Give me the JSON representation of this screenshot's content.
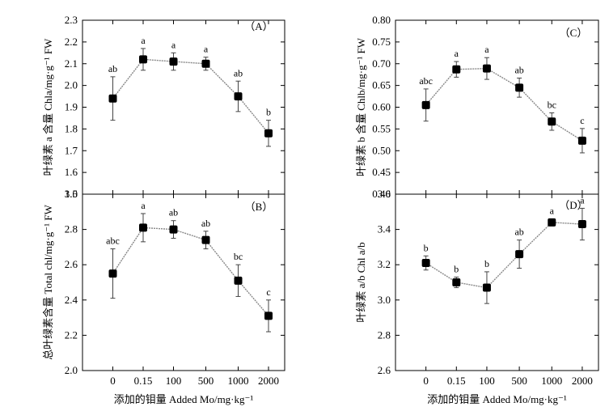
{
  "chart_data": [
    {
      "id": "A",
      "type": "line",
      "panel_label": "（A）",
      "ylabel": "叶绿素 a 含量 Chla/mg·g⁻¹ FW",
      "xlabel": "",
      "categories": [
        "0",
        "0.15",
        "100",
        "500",
        "1000",
        "2000"
      ],
      "ylim": [
        1.5,
        2.3
      ],
      "yticks": [
        "1.5",
        "1.6",
        "1.7",
        "1.8",
        "1.9",
        "2.0",
        "2.1",
        "2.2",
        "2.3"
      ],
      "values": [
        1.94,
        2.12,
        2.11,
        2.1,
        1.95,
        1.78
      ],
      "errors": [
        0.1,
        0.05,
        0.04,
        0.03,
        0.07,
        0.06
      ],
      "sig": [
        "ab",
        "a",
        "a",
        "a",
        "ab",
        "b"
      ]
    },
    {
      "id": "B",
      "type": "line",
      "panel_label": "（B）",
      "ylabel": "总叶绿素含量 Total chl/mg·g⁻¹ FW",
      "xlabel": "添加的钼量 Added Mo/mg·kg⁻¹",
      "categories": [
        "0",
        "0.15",
        "100",
        "500",
        "1000",
        "2000"
      ],
      "ylim": [
        2.0,
        3.0
      ],
      "yticks": [
        "2.0",
        "2.2",
        "2.4",
        "2.6",
        "2.8",
        "3.0"
      ],
      "values": [
        2.55,
        2.81,
        2.8,
        2.74,
        2.51,
        2.31
      ],
      "errors": [
        0.14,
        0.08,
        0.05,
        0.05,
        0.09,
        0.09
      ],
      "sig": [
        "abc",
        "a",
        "ab",
        "ab",
        "bc",
        "c"
      ]
    },
    {
      "id": "C",
      "type": "line",
      "panel_label": "（C）",
      "ylabel": "叶绿素 b 含量 Chlb/mg·g⁻¹ FW",
      "xlabel": "",
      "categories": [
        "0",
        "0.15",
        "100",
        "500",
        "1000",
        "2000"
      ],
      "ylim": [
        0.4,
        0.8
      ],
      "yticks": [
        "0.40",
        "0.45",
        "0.50",
        "0.55",
        "0.60",
        "0.65",
        "0.70",
        "0.75",
        "0.80"
      ],
      "values": [
        0.605,
        0.687,
        0.689,
        0.645,
        0.567,
        0.523
      ],
      "errors": [
        0.037,
        0.018,
        0.025,
        0.022,
        0.02,
        0.028
      ],
      "sig": [
        "abc",
        "a",
        "a",
        "ab",
        "bc",
        "c"
      ]
    },
    {
      "id": "D",
      "type": "line",
      "panel_label": "（D）",
      "ylabel": "叶绿素 a/b Chl a/b",
      "xlabel": "添加的钼量 Added Mo/mg·kg⁻¹",
      "categories": [
        "0",
        "0.15",
        "100",
        "500",
        "1000",
        "2000"
      ],
      "ylim": [
        2.6,
        3.6
      ],
      "yticks": [
        "2.6",
        "2.8",
        "3.0",
        "3.2",
        "3.4",
        "3.6"
      ],
      "values": [
        3.21,
        3.1,
        3.07,
        3.26,
        3.44,
        3.43
      ],
      "errors": [
        0.04,
        0.03,
        0.09,
        0.08,
        0.02,
        0.09
      ],
      "sig": [
        "b",
        "b",
        "b",
        "ab",
        "a",
        "a"
      ]
    }
  ]
}
